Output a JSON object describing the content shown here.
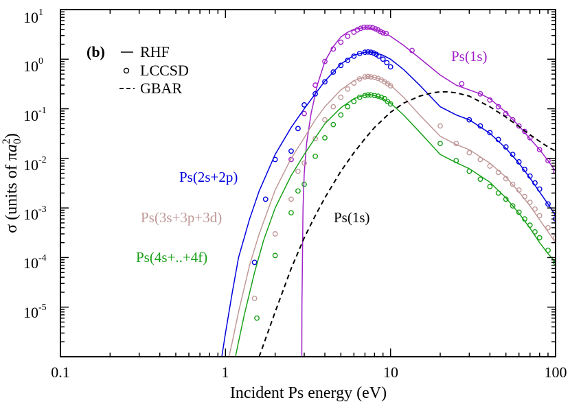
{
  "chart_data": {
    "type": "line",
    "panel_label": "(b)",
    "xlabel": "Incident Ps energy (eV)",
    "ylabel_prefix": "σ (units of π",
    "ylabel_a": "a",
    "ylabel_sub": "0",
    "ylabel_sup": "2",
    "ylabel_suffix": ")",
    "xscale": "log",
    "yscale": "log",
    "xlim": [
      0.1,
      100
    ],
    "ylim": [
      1e-06,
      10
    ],
    "x_ticks": [
      {
        "value": 0.1,
        "label": "0.1"
      },
      {
        "value": 1,
        "label": "1"
      },
      {
        "value": 10,
        "label": "10"
      },
      {
        "value": 100,
        "label": "100"
      }
    ],
    "y_ticks": [
      {
        "value": 10,
        "base": "10",
        "exp": "1"
      },
      {
        "value": 1,
        "base": "10",
        "exp": "0"
      },
      {
        "value": 0.1,
        "base": "10",
        "exp": "-1"
      },
      {
        "value": 0.01,
        "base": "10",
        "exp": "-2"
      },
      {
        "value": 0.001,
        "base": "10",
        "exp": "-3"
      },
      {
        "value": 0.0001,
        "base": "10",
        "exp": "-4"
      },
      {
        "value": 1e-05,
        "base": "10",
        "exp": "-5"
      }
    ],
    "legend": {
      "position": "top-left",
      "entries": [
        {
          "style": "solid",
          "label": "RHF"
        },
        {
          "style": "circle",
          "label": "LCCSD"
        },
        {
          "style": "dashed",
          "label": "GBAR"
        }
      ]
    },
    "series": [
      {
        "name": "Ps(1s)",
        "color": "#a020c8",
        "rhf": {
          "x": [
            2.9,
            2.905,
            2.92,
            2.95,
            3.0,
            3.1,
            3.3,
            3.6,
            4.0,
            4.5,
            5.0,
            5.5,
            6.0,
            6.5,
            7.0,
            7.5,
            8.0,
            8.5,
            9.0,
            10,
            12,
            15,
            20,
            25,
            30,
            35,
            40,
            50,
            60,
            70,
            80,
            90,
            100
          ],
          "y": [
            1e-06,
            1e-05,
            5e-05,
            0.001,
            0.005,
            0.02,
            0.08,
            0.3,
            0.9,
            1.8,
            2.8,
            3.5,
            4.0,
            4.2,
            4.3,
            4.2,
            4.0,
            3.8,
            3.5,
            2.9,
            1.9,
            1.05,
            0.48,
            0.3,
            0.24,
            0.2,
            0.16,
            0.085,
            0.045,
            0.025,
            0.015,
            0.009,
            0.0055
          ]
        },
        "lccsd": {
          "x": [
            2.5,
            3.0,
            3.5,
            4.0,
            4.5,
            5.0,
            5.5,
            6.0,
            6.3,
            6.6,
            6.9,
            7.2,
            7.5,
            7.8,
            8.1,
            8.4,
            8.7,
            9.0,
            9.4,
            13.5,
            27,
            35,
            40,
            45,
            50,
            55,
            60,
            65,
            70,
            80,
            90,
            100
          ],
          "y": [
            0.0095,
            0.08,
            0.3,
            0.9,
            1.6,
            2.2,
            2.9,
            3.5,
            3.9,
            4.2,
            4.4,
            4.4,
            4.4,
            4.3,
            4.1,
            3.9,
            3.6,
            3.4,
            3.3,
            1.5,
            0.32,
            0.2,
            0.15,
            0.11,
            0.08,
            0.06,
            0.045,
            0.035,
            0.026,
            0.015,
            0.009,
            0.0055
          ]
        }
      },
      {
        "name": "Ps(2s+2p)",
        "color": "#0000dd",
        "rhf": {
          "x": [
            0.95,
            1.0,
            1.1,
            1.2,
            1.4,
            1.6,
            2.0,
            2.5,
            3.0,
            3.5,
            4.0,
            5.0,
            6.0,
            7.0,
            7.5,
            8.0,
            9.0,
            10,
            12,
            15,
            20,
            25,
            30,
            40,
            50,
            60,
            70,
            80,
            90,
            100
          ],
          "y": [
            1e-06,
            3e-06,
            2e-05,
            0.0001,
            0.0006,
            0.0022,
            0.012,
            0.042,
            0.1,
            0.2,
            0.36,
            0.8,
            1.2,
            1.38,
            1.4,
            1.36,
            1.2,
            1.0,
            0.62,
            0.3,
            0.11,
            0.075,
            0.06,
            0.032,
            0.016,
            0.008,
            0.004,
            0.0021,
            0.0012,
            0.0007
          ]
        },
        "lccsd": {
          "x": [
            1.5,
            1.75,
            2.0,
            2.5,
            2.75,
            3.0,
            3.5,
            4.0,
            4.5,
            5.0,
            5.5,
            6.0,
            6.5,
            7.0,
            7.3,
            7.6,
            7.9,
            8.2,
            8.5,
            9.0,
            9.5,
            10,
            30,
            35,
            40,
            45,
            50,
            55,
            60,
            65,
            70,
            75,
            80,
            90,
            100
          ],
          "y": [
            8e-05,
            0.0015,
            0.0095,
            0.014,
            0.04,
            0.12,
            0.2,
            0.35,
            0.55,
            0.75,
            0.95,
            1.15,
            1.3,
            1.38,
            1.4,
            1.38,
            1.33,
            1.25,
            1.15,
            1.0,
            0.85,
            0.7,
            0.06,
            0.045,
            0.033,
            0.024,
            0.017,
            0.012,
            0.0085,
            0.006,
            0.0044,
            0.0032,
            0.0024,
            0.0012,
            0.0006
          ]
        }
      },
      {
        "name": "Ps(3s+3p+3d)",
        "color": "#c09898",
        "rhf": {
          "x": [
            1.05,
            1.1,
            1.2,
            1.4,
            1.6,
            2.0,
            2.5,
            3.0,
            3.5,
            4.0,
            5.0,
            6.0,
            7.0,
            7.5,
            8.0,
            9.0,
            10,
            12,
            15,
            20,
            25,
            30,
            40,
            50,
            60,
            70,
            80,
            90,
            100
          ],
          "y": [
            1e-06,
            2e-06,
            8e-06,
            7e-05,
            0.0003,
            0.0023,
            0.01,
            0.026,
            0.06,
            0.11,
            0.24,
            0.37,
            0.44,
            0.45,
            0.43,
            0.38,
            0.3,
            0.17,
            0.075,
            0.028,
            0.019,
            0.015,
            0.008,
            0.0042,
            0.0021,
            0.0011,
            0.00058,
            0.00033,
            0.0002
          ]
        },
        "lccsd": {
          "x": [
            1.5,
            2.0,
            2.5,
            2.75,
            3.0,
            3.5,
            4.0,
            4.5,
            5.0,
            5.5,
            6.0,
            6.5,
            7.0,
            7.3,
            7.6,
            8.0,
            8.4,
            8.8,
            9.2,
            9.6,
            10,
            20,
            25,
            30,
            35,
            40,
            45,
            50,
            55,
            60,
            65,
            70,
            75,
            80,
            90,
            100
          ],
          "y": [
            1.5e-05,
            0.0003,
            0.0015,
            0.0055,
            0.008,
            0.025,
            0.06,
            0.11,
            0.17,
            0.25,
            0.33,
            0.4,
            0.44,
            0.45,
            0.44,
            0.43,
            0.41,
            0.38,
            0.35,
            0.32,
            0.29,
            0.045,
            0.02,
            0.013,
            0.0095,
            0.007,
            0.0052,
            0.0039,
            0.003,
            0.0023,
            0.0017,
            0.0013,
            0.00095,
            0.0007,
            0.0004,
            0.00025
          ]
        }
      },
      {
        "name": "Ps(4s+..+4f)",
        "color": "#18a018",
        "rhf": {
          "x": [
            1.15,
            1.2,
            1.3,
            1.5,
            1.7,
            2.0,
            2.5,
            3.0,
            3.5,
            4.0,
            5.0,
            6.0,
            7.0,
            7.5,
            8.0,
            9.0,
            10,
            12,
            15,
            20,
            25,
            30,
            40,
            50,
            60,
            70,
            80,
            90,
            100
          ],
          "y": [
            1e-06,
            2e-06,
            7e-06,
            5e-05,
            0.00022,
            0.001,
            0.0045,
            0.012,
            0.026,
            0.05,
            0.105,
            0.16,
            0.19,
            0.195,
            0.185,
            0.16,
            0.13,
            0.075,
            0.034,
            0.012,
            0.0082,
            0.0062,
            0.0033,
            0.0016,
            0.00078,
            0.00039,
            0.0002,
            0.00012,
            8e-05
          ]
        },
        "lccsd": {
          "x": [
            1.55,
            2.0,
            2.5,
            2.75,
            3.0,
            3.5,
            4.0,
            4.5,
            5.0,
            5.5,
            6.0,
            6.5,
            7.0,
            7.3,
            7.6,
            8.0,
            8.4,
            8.8,
            9.2,
            9.6,
            10,
            20,
            25,
            30,
            35,
            40,
            45,
            50,
            55,
            60,
            65,
            70,
            75,
            80,
            90,
            100
          ],
          "y": [
            6e-06,
            0.00011,
            0.0008,
            0.0022,
            0.003,
            0.011,
            0.026,
            0.048,
            0.075,
            0.11,
            0.14,
            0.17,
            0.185,
            0.19,
            0.19,
            0.185,
            0.18,
            0.17,
            0.16,
            0.14,
            0.125,
            0.02,
            0.009,
            0.0055,
            0.0038,
            0.0027,
            0.002,
            0.0015,
            0.0011,
            0.00082,
            0.0006,
            0.00045,
            0.00033,
            0.00025,
            0.00014,
            8e-05
          ]
        }
      },
      {
        "name": "Ps(1s)",
        "color": "#000000",
        "gbar": {
          "x": [
            1.6,
            1.8,
            2.0,
            2.5,
            3.0,
            3.5,
            4.0,
            5.0,
            6.0,
            7.0,
            8.0,
            10,
            12,
            15,
            18,
            20,
            22,
            25,
            30,
            40,
            50,
            60,
            70,
            80,
            90,
            100
          ],
          "y": [
            1e-06,
            3e-06,
            8e-06,
            6e-05,
            0.00025,
            0.0007,
            0.0016,
            0.0055,
            0.013,
            0.025,
            0.042,
            0.085,
            0.13,
            0.18,
            0.21,
            0.22,
            0.22,
            0.21,
            0.18,
            0.11,
            0.068,
            0.044,
            0.03,
            0.022,
            0.017,
            0.014
          ]
        }
      }
    ],
    "annotations": [
      {
        "text": "Ps(1s)",
        "color": "#a020c8"
      },
      {
        "text": "Ps(2s+2p)",
        "color": "#0000dd"
      },
      {
        "text": "Ps(3s+3p+3d)",
        "color": "#c09898"
      },
      {
        "text": "Ps(4s+..+4f)",
        "color": "#18a018"
      },
      {
        "text": "Ps(1s)",
        "color": "#000000"
      }
    ]
  }
}
